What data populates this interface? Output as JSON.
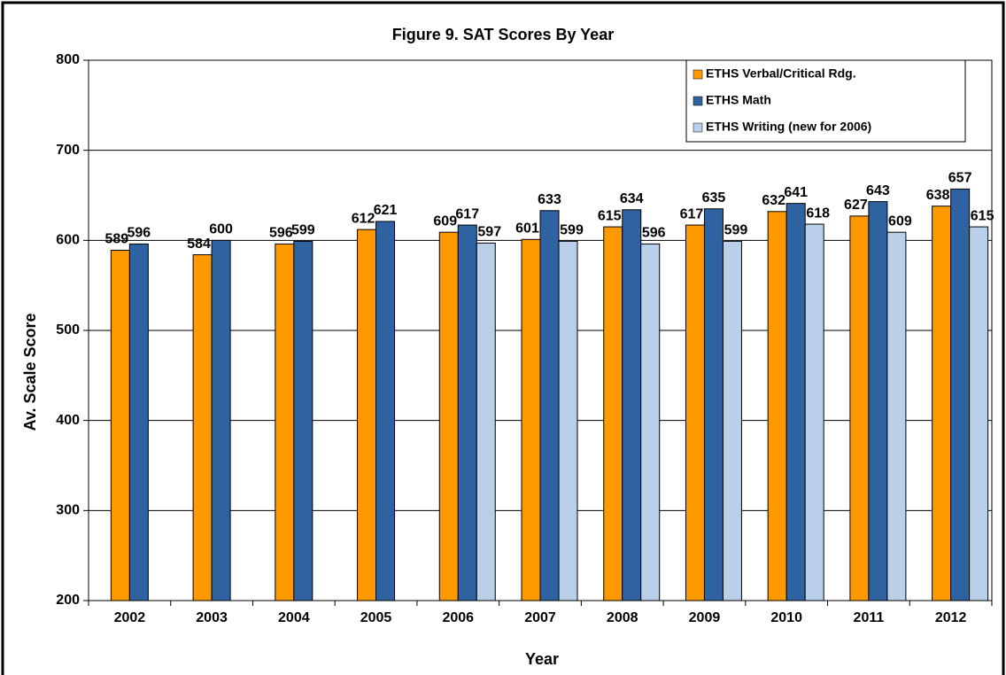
{
  "chart_data": {
    "type": "bar",
    "title": "Figure 9. SAT Scores By Year",
    "x_label": "Year",
    "y_label": "Av. Scale Score",
    "categories": [
      "2002",
      "2003",
      "2004",
      "2005",
      "2006",
      "2007",
      "2008",
      "2009",
      "2010",
      "2011",
      "2012"
    ],
    "series": [
      {
        "name": "ETHS Verbal/Critical Rdg.",
        "color": "#ff9900",
        "values": [
          589,
          584,
          596,
          612,
          609,
          601,
          615,
          617,
          632,
          627,
          638
        ]
      },
      {
        "name": "ETHS Math",
        "color": "#2e62a1",
        "values": [
          596,
          600,
          599,
          621,
          617,
          633,
          634,
          635,
          641,
          643,
          657
        ]
      },
      {
        "name": "ETHS Writing (new for 2006)",
        "color": "#b9cfea",
        "values": [
          null,
          null,
          null,
          null,
          597,
          599,
          596,
          599,
          618,
          609,
          615
        ]
      }
    ],
    "ylim": [
      200,
      800
    ],
    "yticks": [
      200,
      300,
      400,
      500,
      600,
      700,
      800
    ],
    "grid": true,
    "legend": "upper right"
  }
}
